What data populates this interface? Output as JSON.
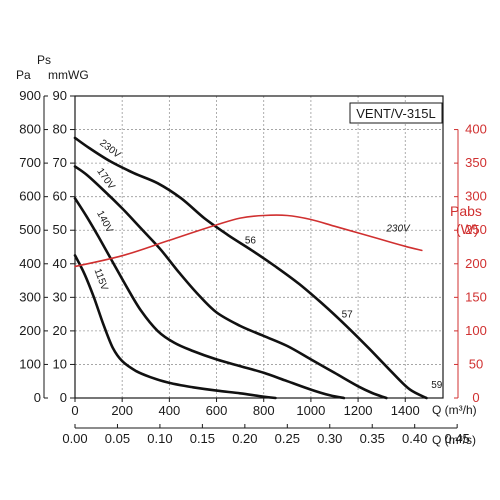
{
  "chart_data": {
    "type": "line",
    "model_label": "VENT/V-315L",
    "units": {
      "pa": "Pa",
      "ps": "Ps",
      "mmwg": "mmWG",
      "q_m3h": "Q (m³/h)",
      "q_m3s": "Q (m³/s)",
      "pabs": "Pabs",
      "w": "(W)"
    },
    "x_axis": {
      "xlim": [
        0,
        1560
      ],
      "ticks": [
        0,
        200,
        400,
        600,
        800,
        1000,
        1200,
        1400
      ],
      "tick_labels": [
        "0",
        "200",
        "400",
        "600",
        "800",
        "1000",
        "1200",
        "1400"
      ]
    },
    "x2_axis": {
      "ticks": [
        0,
        0.05,
        0.1,
        0.15,
        0.2,
        0.25,
        0.3,
        0.35,
        0.4,
        0.45
      ],
      "tick_labels": [
        "0.00",
        "0.05",
        "0.10",
        "0.15",
        "0.20",
        "0.25",
        "0.30",
        "0.35",
        "0.40",
        "0.45"
      ]
    },
    "y_axis_pa": {
      "ylim": [
        0,
        900
      ],
      "ticks": [
        0,
        100,
        200,
        300,
        400,
        500,
        600,
        700,
        800,
        900
      ],
      "tick_labels": [
        "0",
        "100",
        "200",
        "300",
        "400",
        "500",
        "600",
        "700",
        "800",
        "900"
      ]
    },
    "y_axis_mmwg": {
      "ticks": [
        0,
        10,
        20,
        30,
        40,
        50,
        60,
        70,
        80,
        90
      ],
      "tick_labels": [
        "0",
        "10",
        "20",
        "30",
        "40",
        "50",
        "60",
        "70",
        "80",
        "90"
      ]
    },
    "y_axis_w": {
      "ylim": [
        0,
        450
      ],
      "ticks": [
        0,
        50,
        100,
        150,
        200,
        250,
        300,
        350,
        400
      ],
      "tick_labels": [
        "0",
        "50",
        "100",
        "150",
        "200",
        "250",
        "300",
        "350",
        "400"
      ]
    },
    "series": [
      {
        "name": "230V",
        "axis": "pa",
        "color": "#111111",
        "x": [
          0,
          60,
          150,
          250,
          350,
          450,
          550,
          650,
          750,
          850,
          950,
          1050,
          1150,
          1250,
          1350,
          1420,
          1490
        ],
        "y": [
          775,
          745,
          705,
          670,
          640,
          595,
          535,
          485,
          440,
          392,
          340,
          280,
          215,
          145,
          72,
          25,
          0
        ]
      },
      {
        "name": "170V",
        "axis": "pa",
        "color": "#111111",
        "x": [
          0,
          50,
          120,
          200,
          280,
          360,
          440,
          520,
          600,
          700,
          800,
          900,
          1000,
          1100,
          1200,
          1260,
          1320
        ],
        "y": [
          690,
          665,
          620,
          565,
          505,
          445,
          375,
          310,
          255,
          215,
          185,
          155,
          115,
          75,
          35,
          15,
          0
        ]
      },
      {
        "name": "140V",
        "axis": "pa",
        "color": "#111111",
        "x": [
          0,
          50,
          100,
          160,
          220,
          280,
          350,
          420,
          500,
          600,
          700,
          800,
          900,
          1000,
          1080,
          1140
        ],
        "y": [
          595,
          540,
          480,
          405,
          330,
          260,
          200,
          165,
          140,
          115,
          95,
          75,
          50,
          25,
          8,
          0
        ]
      },
      {
        "name": "115V",
        "axis": "pa",
        "color": "#111111",
        "x": [
          0,
          40,
          80,
          120,
          160,
          200,
          260,
          320,
          400,
          500,
          600,
          700,
          780,
          850
        ],
        "y": [
          425,
          370,
          300,
          220,
          150,
          110,
          80,
          62,
          45,
          32,
          22,
          14,
          6,
          0
        ]
      },
      {
        "name": "230V",
        "axis": "w",
        "color": "#d03030",
        "x": [
          0,
          200,
          400,
          600,
          700,
          800,
          900,
          1000,
          1100,
          1200,
          1300,
          1400,
          1470
        ],
        "y": [
          196,
          212,
          235,
          258,
          268,
          272,
          272,
          266,
          256,
          246,
          236,
          226,
          220
        ]
      }
    ],
    "annotations": [
      {
        "text": "56",
        "x": 720,
        "y": 460
      },
      {
        "text": "57",
        "x": 1130,
        "y": 240
      },
      {
        "text": "59",
        "x": 1510,
        "y": 30
      }
    ],
    "grid": true
  }
}
